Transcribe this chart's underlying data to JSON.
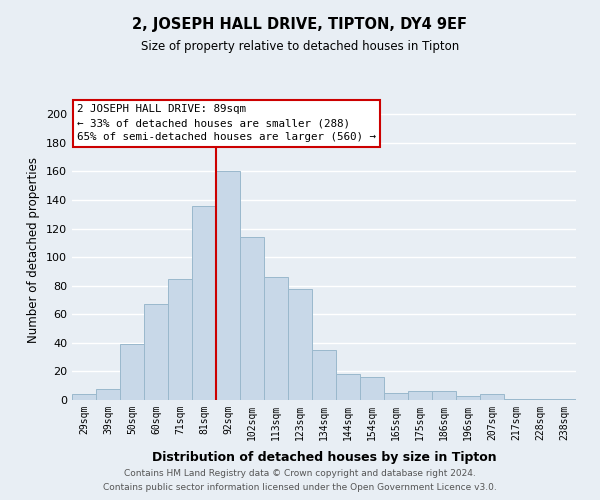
{
  "title": "2, JOSEPH HALL DRIVE, TIPTON, DY4 9EF",
  "subtitle": "Size of property relative to detached houses in Tipton",
  "xlabel": "Distribution of detached houses by size in Tipton",
  "ylabel": "Number of detached properties",
  "bar_color": "#c8d8e8",
  "bar_edge_color": "#9ab8cc",
  "categories": [
    "29sqm",
    "39sqm",
    "50sqm",
    "60sqm",
    "71sqm",
    "81sqm",
    "92sqm",
    "102sqm",
    "113sqm",
    "123sqm",
    "134sqm",
    "144sqm",
    "154sqm",
    "165sqm",
    "175sqm",
    "186sqm",
    "196sqm",
    "207sqm",
    "217sqm",
    "228sqm",
    "238sqm"
  ],
  "values": [
    4,
    8,
    39,
    67,
    85,
    136,
    160,
    114,
    86,
    78,
    35,
    18,
    16,
    5,
    6,
    6,
    3,
    4,
    1,
    1,
    1
  ],
  "ylim": [
    0,
    210
  ],
  "yticks": [
    0,
    20,
    40,
    60,
    80,
    100,
    120,
    140,
    160,
    180,
    200
  ],
  "vline_color": "#cc0000",
  "annotation_title": "2 JOSEPH HALL DRIVE: 89sqm",
  "annotation_line1": "← 33% of detached houses are smaller (288)",
  "annotation_line2": "65% of semi-detached houses are larger (560) →",
  "annotation_box_color": "#ffffff",
  "annotation_box_edge": "#cc0000",
  "footer_line1": "Contains HM Land Registry data © Crown copyright and database right 2024.",
  "footer_line2": "Contains public sector information licensed under the Open Government Licence v3.0.",
  "background_color": "#e8eef4",
  "plot_bg_color": "#e8eef4",
  "grid_color": "#ffffff"
}
